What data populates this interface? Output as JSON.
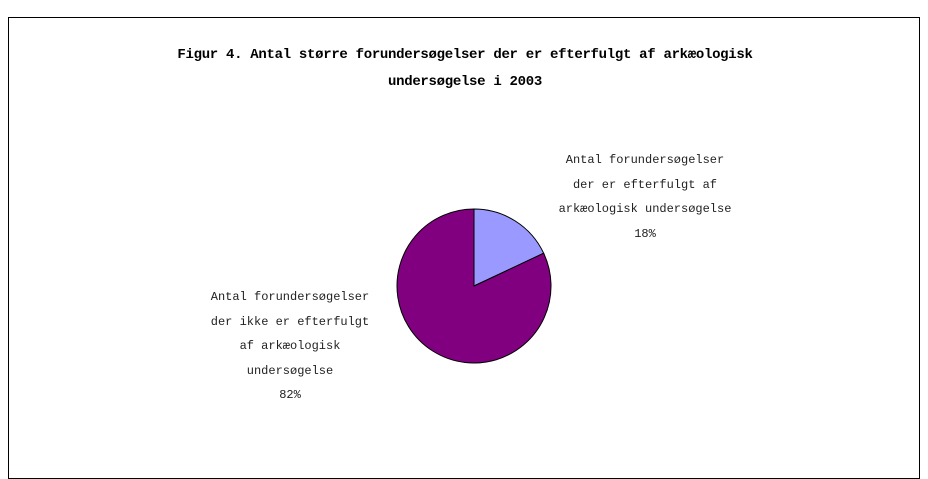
{
  "chart_data": {
    "type": "pie",
    "title": "Figur 4. Antal større forundersøgelser der er efterfulgt af arkæologisk undersøgelse i 2003",
    "categories": [
      "Antal forundersøgelser der er efterfulgt af arkæologisk undersøgelse",
      "Antal forundersøgelser der ikke er efterfulgt af arkæologisk undersøgelse"
    ],
    "values": [
      18,
      82
    ],
    "value_labels": [
      "18%",
      "82%"
    ],
    "colors": [
      "#9999ff",
      "#800080"
    ]
  }
}
